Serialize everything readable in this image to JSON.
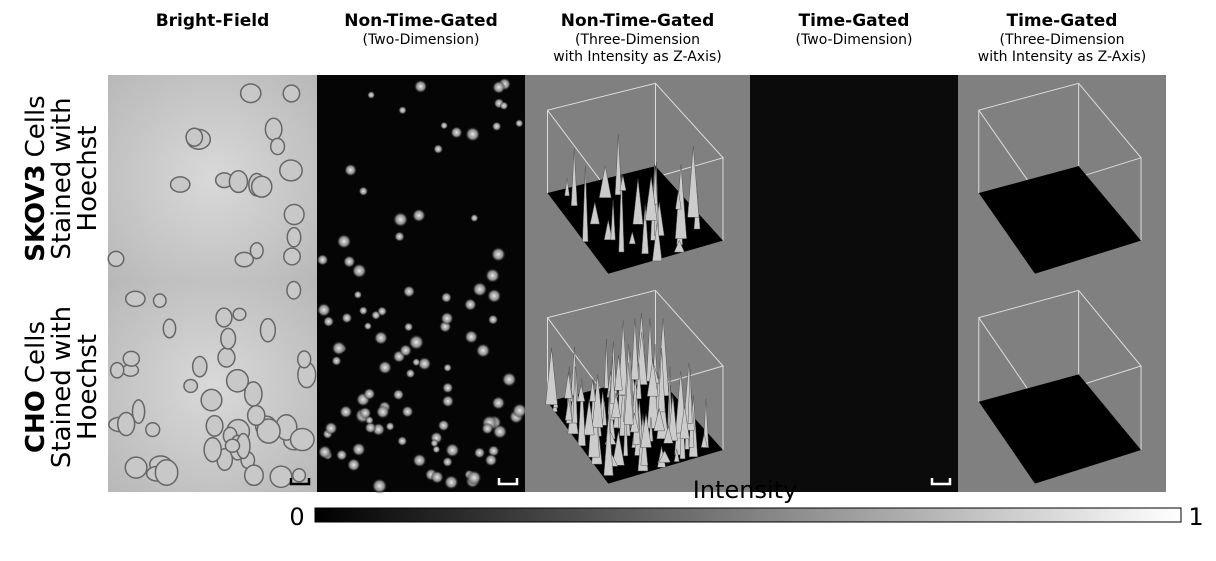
{
  "columns": [
    {
      "title": "Bright-Field",
      "subtitle_lines": []
    },
    {
      "title": "Non-Time-Gated",
      "subtitle_lines": [
        "(Two-Dimension)"
      ]
    },
    {
      "title": "Non-Time-Gated",
      "subtitle_lines": [
        "(Three-Dimension",
        "with Intensity as Z-Axis)"
      ]
    },
    {
      "title": "Time-Gated",
      "subtitle_lines": [
        "(Two-Dimension)"
      ]
    },
    {
      "title": "Time-Gated",
      "subtitle_lines": [
        "(Three-Dimension",
        "with Intensity as Z-Axis)"
      ]
    }
  ],
  "rows": [
    {
      "bold": "SKOV3",
      "first_line_rest": "Cells",
      "lines": [
        "Stained with",
        "Hoechst"
      ]
    },
    {
      "bold": "CHO",
      "first_line_rest": "Cells",
      "lines": [
        "Stained with",
        "Hoechst"
      ]
    }
  ],
  "colorbar": {
    "label": "Intensity",
    "min": 0,
    "max": 1
  }
}
